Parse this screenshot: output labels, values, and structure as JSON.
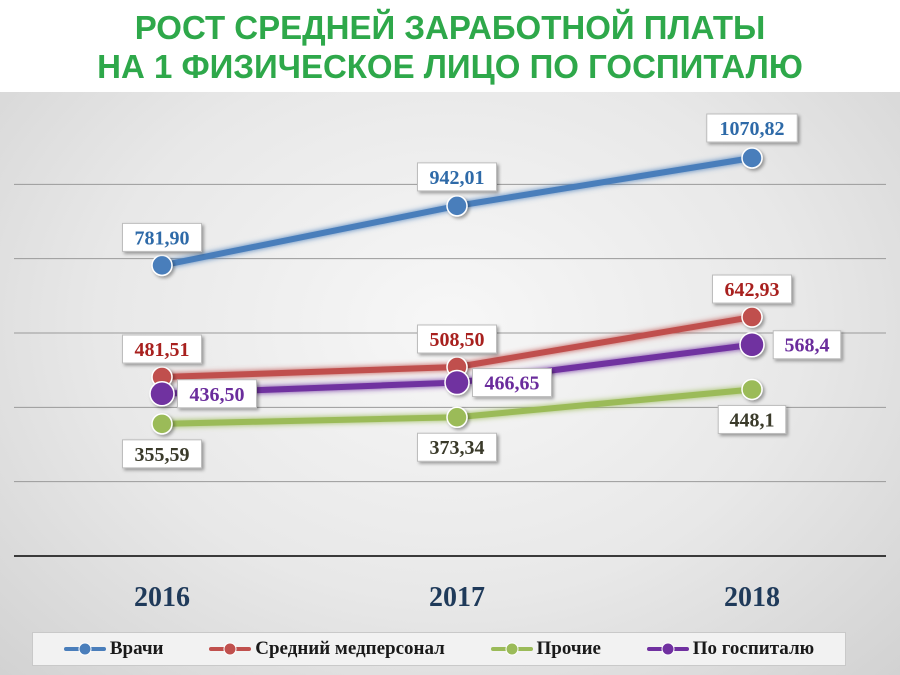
{
  "title_line1": "РОСТ СРЕДНЕЙ ЗАРАБОТНОЙ ПЛАТЫ",
  "title_line2": "НА 1 ФИЗИЧЕСКОЕ ЛИЦО ПО ГОСПИТАЛЮ",
  "chart_data": {
    "type": "line",
    "x": [
      "2016",
      "2017",
      "2018"
    ],
    "ylim": [
      0,
      1200
    ],
    "grid": true,
    "legend_position": "bottom",
    "series": [
      {
        "name": "Врачи",
        "values": [
          781.9,
          942.01,
          1070.82
        ],
        "labels": [
          "781,90",
          "942,01",
          "1070,82"
        ],
        "color": "#4a7ebb",
        "label_color": "#2e6aa8"
      },
      {
        "name": "Средний медперсонал",
        "values": [
          481.51,
          508.5,
          642.93
        ],
        "labels": [
          "481,51",
          "508,50",
          "642,93"
        ],
        "color": "#c0504d",
        "label_color": "#a8201e"
      },
      {
        "name": "Прочие",
        "values": [
          355.59,
          373.34,
          448.1
        ],
        "labels": [
          "355,59",
          "373,34",
          "448,1"
        ],
        "color": "#9bbb59",
        "label_color": "#3a3a2a"
      },
      {
        "name": "По госпиталю",
        "values": [
          436.5,
          466.65,
          568.4
        ],
        "labels": [
          "436,50",
          "466,65",
          "568,4"
        ],
        "color": "#7030a0",
        "label_color": "#6a2c9c"
      }
    ]
  }
}
